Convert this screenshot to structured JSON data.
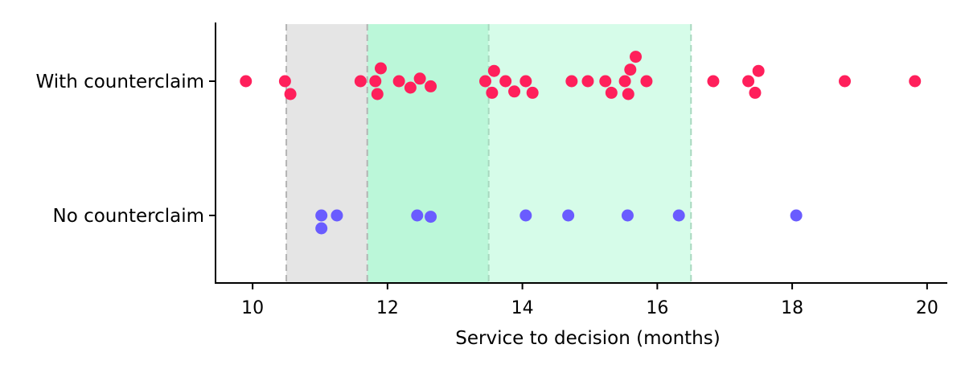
{
  "chart_data": {
    "type": "scatter",
    "xlabel": "Service to decision (months)",
    "ylabel": "",
    "xlim": [
      9.45,
      20.3
    ],
    "xticks": [
      10,
      12,
      14,
      16,
      18,
      20
    ],
    "grid": false,
    "legend": "none",
    "categories": [
      "With counterclaim",
      "No counterclaim"
    ],
    "bands": [
      {
        "x0": 10.5,
        "x1": 11.7,
        "color": "#e5e5e5",
        "edge": "#b4b4b4"
      },
      {
        "x0": 11.7,
        "x1": 13.5,
        "color": "#bbf7d9",
        "edge": "#a8d8bf"
      },
      {
        "x0": 13.5,
        "x1": 16.5,
        "color": "#d6fce9",
        "edge": "#a8d8bf"
      }
    ],
    "series": [
      {
        "category": "With counterclaim",
        "color": "#ff1f5b",
        "points": [
          {
            "x": 9.9,
            "y": 0
          },
          {
            "x": 10.48,
            "y": 0
          },
          {
            "x": 10.56,
            "y": -0.1
          },
          {
            "x": 11.6,
            "y": 0
          },
          {
            "x": 11.82,
            "y": 0
          },
          {
            "x": 11.9,
            "y": 0.1
          },
          {
            "x": 11.85,
            "y": -0.1
          },
          {
            "x": 12.17,
            "y": 0
          },
          {
            "x": 12.34,
            "y": -0.05
          },
          {
            "x": 12.48,
            "y": 0.02
          },
          {
            "x": 12.64,
            "y": -0.04
          },
          {
            "x": 13.45,
            "y": 0
          },
          {
            "x": 13.58,
            "y": 0.08
          },
          {
            "x": 13.55,
            "y": -0.09
          },
          {
            "x": 13.75,
            "y": 0
          },
          {
            "x": 13.88,
            "y": -0.08
          },
          {
            "x": 14.05,
            "y": 0
          },
          {
            "x": 14.15,
            "y": -0.09
          },
          {
            "x": 14.73,
            "y": 0
          },
          {
            "x": 14.97,
            "y": 0
          },
          {
            "x": 15.23,
            "y": 0
          },
          {
            "x": 15.32,
            "y": -0.09
          },
          {
            "x": 15.52,
            "y": 0
          },
          {
            "x": 15.6,
            "y": 0.09
          },
          {
            "x": 15.68,
            "y": 0.19
          },
          {
            "x": 15.57,
            "y": -0.1
          },
          {
            "x": 15.84,
            "y": 0
          },
          {
            "x": 16.83,
            "y": 0
          },
          {
            "x": 17.35,
            "y": 0
          },
          {
            "x": 17.5,
            "y": 0.08
          },
          {
            "x": 17.45,
            "y": -0.09
          },
          {
            "x": 18.78,
            "y": 0
          },
          {
            "x": 19.82,
            "y": 0
          }
        ]
      },
      {
        "category": "No counterclaim",
        "color": "#6a5cff",
        "points": [
          {
            "x": 11.02,
            "y": 0
          },
          {
            "x": 11.02,
            "y": -0.1
          },
          {
            "x": 11.25,
            "y": 0
          },
          {
            "x": 12.44,
            "y": 0
          },
          {
            "x": 12.64,
            "y": -0.01
          },
          {
            "x": 14.05,
            "y": 0
          },
          {
            "x": 14.68,
            "y": 0
          },
          {
            "x": 15.56,
            "y": 0
          },
          {
            "x": 16.32,
            "y": 0
          },
          {
            "x": 18.06,
            "y": 0
          }
        ]
      }
    ]
  }
}
